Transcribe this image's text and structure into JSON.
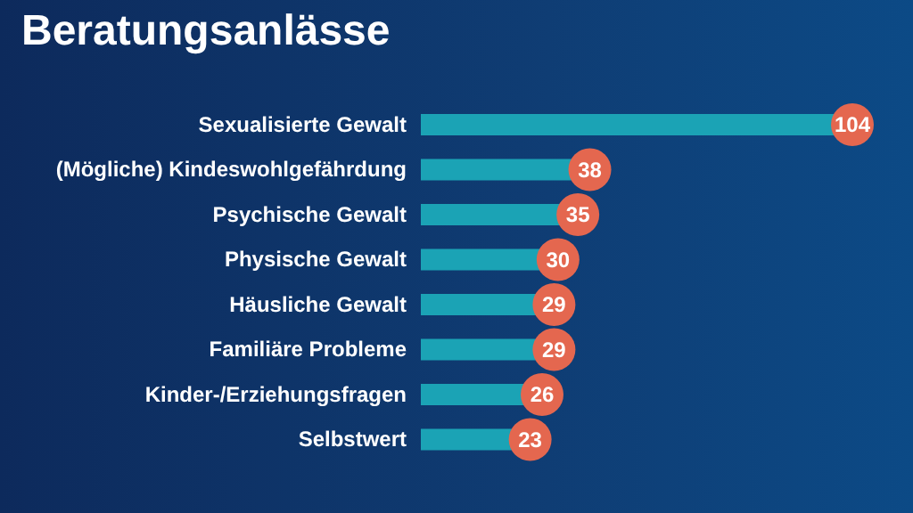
{
  "chart_data": {
    "type": "bar",
    "orientation": "horizontal",
    "title": "Beratungsanlässe",
    "categories": [
      "Sexualisierte Gewalt",
      "(Mögliche) Kindeswohlgefährdung",
      "Psychische Gewalt",
      "Physische Gewalt",
      "Häusliche Gewalt",
      "Familiäre Probleme",
      "Kinder-/Erziehungsfragen",
      "Selbstwert"
    ],
    "values": [
      104,
      38,
      35,
      30,
      29,
      29,
      26,
      23
    ],
    "color": "#1ba3b5",
    "data_labels": true,
    "grid": false,
    "legend": false
  }
}
